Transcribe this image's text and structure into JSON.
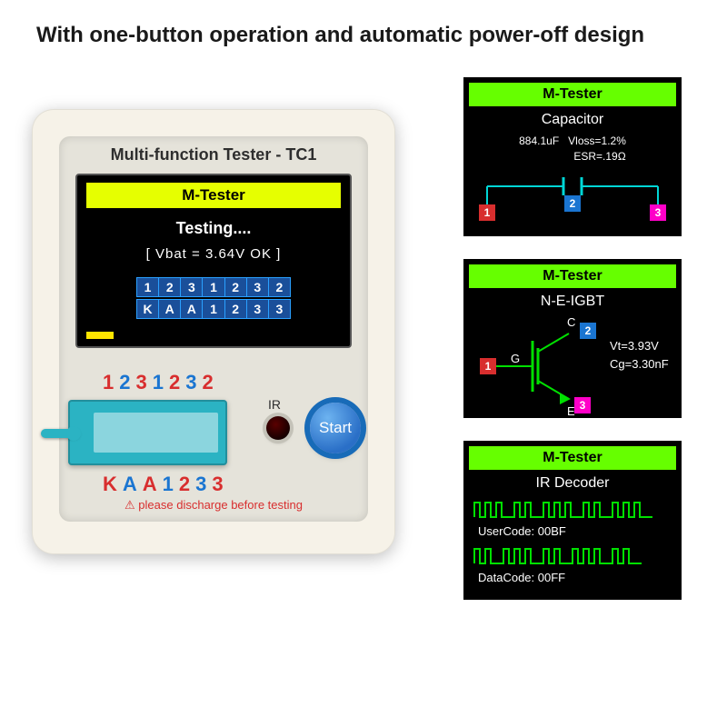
{
  "headline": "With one-button operation and automatic  power-off design",
  "colors": {
    "band_green": "#66ff00",
    "blue": "#1a75d1",
    "red": "#d82e2e",
    "magenta": "#ff00c8",
    "cyan_line": "#00d6d6",
    "wave_green": "#00e000"
  },
  "device": {
    "title": "Multi-function Tester - TC1",
    "lcd": {
      "band_label": "M-Tester",
      "line1": "Testing....",
      "line2": "[ Vbat  =  3.64V  OK ]",
      "row1": [
        "1",
        "2",
        "3",
        "1",
        "2",
        "3",
        "2"
      ],
      "row2": [
        "K",
        "A",
        "A",
        "1",
        "2",
        "3",
        "3"
      ]
    },
    "pins_top": [
      {
        "ch": "1",
        "class": "r"
      },
      {
        "ch": "2",
        "class": "b"
      },
      {
        "ch": "3",
        "class": "r"
      },
      {
        "ch": "1",
        "class": "b"
      },
      {
        "ch": "2",
        "class": "r"
      },
      {
        "ch": "3",
        "class": "b"
      },
      {
        "ch": "2",
        "class": "r"
      }
    ],
    "pins_bot": [
      {
        "ch": "K",
        "class": "r"
      },
      {
        "ch": "A",
        "class": "b"
      },
      {
        "ch": "A",
        "class": "r"
      },
      {
        "ch": "1",
        "class": "b"
      },
      {
        "ch": "2",
        "class": "r"
      },
      {
        "ch": "3",
        "class": "b"
      },
      {
        "ch": "3",
        "class": "r"
      }
    ],
    "ir_label": "IR",
    "start_label": "Start",
    "warning": "please discharge before testing"
  },
  "mini1": {
    "band": "M-Tester",
    "title": "Capacitor",
    "value": "884.1uF",
    "vloss": "Vloss=1.2%",
    "esr": "ESR=.19Ω",
    "pin_left": "1",
    "pin_mid": "2",
    "pin_right": "3"
  },
  "mini2": {
    "band": "M-Tester",
    "title": "N-E-IGBT",
    "c_label": "C",
    "g_label": "G",
    "e_label": "E",
    "pin_c": "2",
    "pin_g": "1",
    "pin_e": "3",
    "vt": "Vt=3.93V",
    "cg": "Cg=3.30nF"
  },
  "mini3": {
    "band": "M-Tester",
    "title": "IR Decoder",
    "usercode": "UserCode: 00BF",
    "datacode": "DataCode: 00FF"
  }
}
